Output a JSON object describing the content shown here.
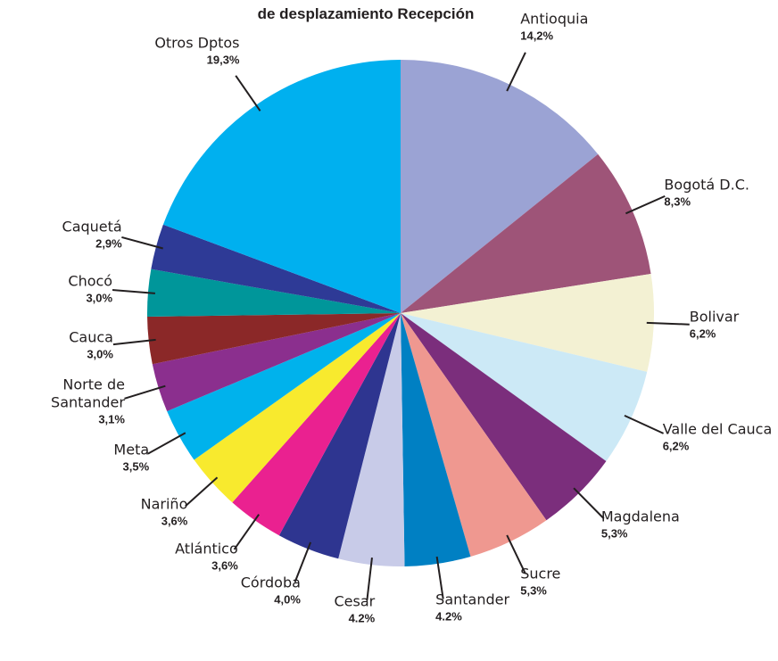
{
  "chart_data": {
    "type": "pie",
    "title": "de desplazamiento Recepción",
    "categories": [
      "Antioquia",
      "Bogotá D.C.",
      "Bolivar",
      "Valle del Cauca",
      "Magdalena",
      "Sucre",
      "Santander",
      "Cesar",
      "Córdoba",
      "Atlántico",
      "Nariño",
      "Meta",
      "Norte de Santander",
      "Cauca",
      "Chocó",
      "Caquetá",
      "Otros Dptos"
    ],
    "values": [
      14.2,
      8.3,
      6.2,
      6.2,
      5.3,
      5.3,
      4.2,
      4.2,
      4.0,
      3.6,
      3.6,
      3.5,
      3.1,
      3.0,
      3.0,
      2.9,
      19.3
    ],
    "value_labels": [
      "14,2%",
      "8,3%",
      "6,2%",
      "6,2%",
      "5,3%",
      "5,3%",
      "4.2%",
      "4.2%",
      "4,0%",
      "3,6%",
      "3,6%",
      "3,5%",
      "3,1%",
      "3,0%",
      "3,0%",
      "2,9%",
      "19,3%"
    ],
    "colors": [
      "#9ba3d4",
      "#9e5478",
      "#f3f1d3",
      "#cce9f6",
      "#7b2e7c",
      "#ef9890",
      "#0080c3",
      "#c8cbe8",
      "#2e3590",
      "#ea2190",
      "#f8ea2e",
      "#00b2ec",
      "#8b2f8e",
      "#8b2828",
      "#00969a",
      "#2e3a96",
      "#00b0ef"
    ]
  }
}
